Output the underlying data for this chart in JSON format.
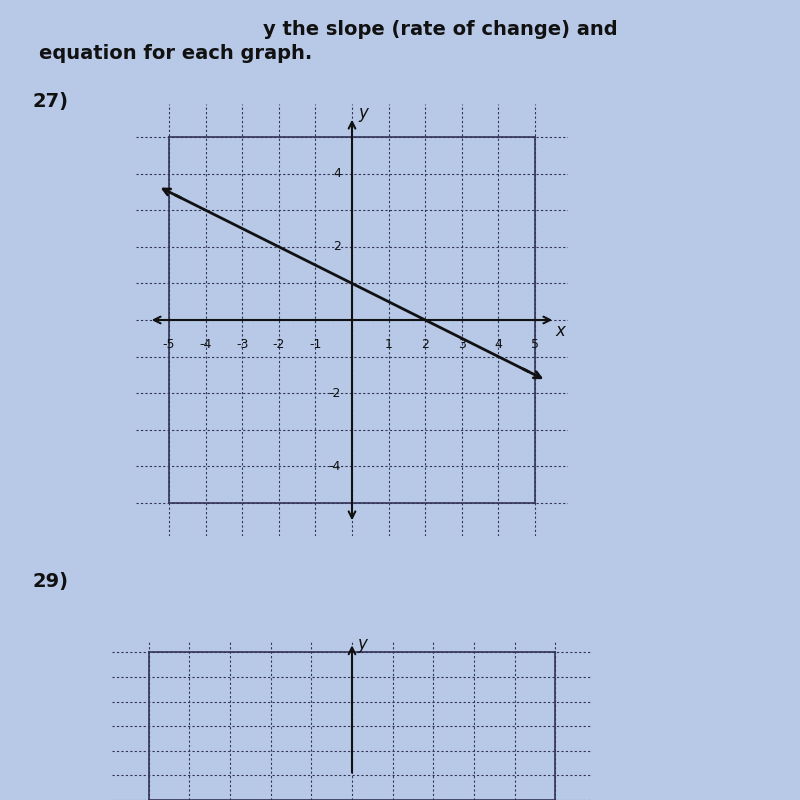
{
  "title_line1": "y the slope (rate of change) and",
  "title_line2": "equation for each graph.",
  "problem_number": "27)",
  "problem_number2": "29)",
  "background_color": "#b8c9e8",
  "grid_color": "#333355",
  "axis_color": "#111111",
  "line_color": "#111111",
  "text_color": "#111111",
  "slope": -0.5,
  "y_intercept": 1,
  "x_min": -5,
  "x_max": 5,
  "y_min": -5,
  "y_max": 5,
  "xlabel": "x",
  "ylabel": "y",
  "figsize": [
    8.0,
    8.0
  ],
  "dpi": 100
}
